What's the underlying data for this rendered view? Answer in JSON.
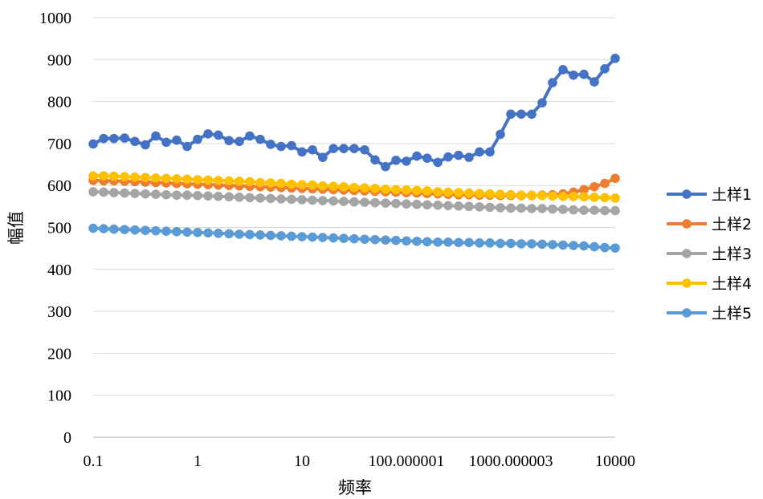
{
  "chart_data": {
    "type": "line",
    "title": "",
    "xlabel": "频率",
    "ylabel": "幅值",
    "x_scale": "log",
    "xlim": [
      0.1,
      10000
    ],
    "ylim": [
      0,
      1000
    ],
    "yticks": [
      "0",
      "100",
      "200",
      "300",
      "400",
      "500",
      "600",
      "700",
      "800",
      "900",
      "1000"
    ],
    "xticks": [
      {
        "value": 0.1,
        "label": "0.1"
      },
      {
        "value": 1,
        "label": "1"
      },
      {
        "value": 10,
        "label": "10"
      },
      {
        "value": 100,
        "label": "100.000001"
      },
      {
        "value": 1000,
        "label": "1000.000003"
      },
      {
        "value": 10000,
        "label": "10000"
      }
    ],
    "grid": "horizontal",
    "legend_position": "right",
    "x": [
      0.1,
      0.126,
      0.158,
      0.2,
      0.251,
      0.316,
      0.398,
      0.501,
      0.631,
      0.794,
      1,
      1.26,
      1.58,
      2,
      2.51,
      3.16,
      3.98,
      5.01,
      6.31,
      7.94,
      10,
      12.6,
      15.8,
      20,
      25.1,
      31.6,
      39.8,
      50.1,
      63.1,
      79.4,
      100,
      126,
      158,
      200,
      251,
      316,
      398,
      501,
      631,
      794,
      1000,
      1259,
      1585,
      1995,
      2512,
      3162,
      3981,
      5012,
      6310,
      7943,
      10000
    ],
    "series": [
      {
        "name": "土样1",
        "color": "#4472c4",
        "values": [
          699,
          712,
          712,
          713,
          705,
          697,
          718,
          703,
          708,
          693,
          710,
          723,
          720,
          707,
          705,
          718,
          710,
          698,
          693,
          695,
          680,
          685,
          667,
          688,
          688,
          688,
          685,
          661,
          645,
          660,
          658,
          670,
          665,
          655,
          668,
          672,
          667,
          680,
          680,
          722,
          770,
          770,
          770,
          797,
          845,
          876,
          863,
          865,
          847,
          878,
          903
        ]
      },
      {
        "name": "土样2",
        "color": "#ed7d31",
        "values": [
          612,
          611,
          611,
          610,
          609,
          608,
          607,
          606,
          605,
          604,
          603,
          602,
          601,
          600,
          599,
          598,
          597,
          596,
          595,
          594,
          593,
          592,
          591,
          590,
          589,
          588,
          587,
          586,
          585,
          584,
          583,
          582,
          581,
          580,
          579,
          578,
          578,
          577,
          577,
          576,
          576,
          576,
          576,
          577,
          578,
          580,
          584,
          590,
          597,
          605,
          617
        ]
      },
      {
        "name": "土样3",
        "color": "#a5a5a5",
        "values": [
          585,
          584,
          583,
          582,
          581,
          580,
          579,
          578,
          577,
          577,
          576,
          575,
          574,
          573,
          572,
          571,
          570,
          569,
          568,
          567,
          566,
          565,
          564,
          563,
          562,
          561,
          560,
          559,
          558,
          557,
          556,
          555,
          554,
          553,
          552,
          551,
          550,
          549,
          548,
          547,
          546,
          546,
          545,
          545,
          544,
          543,
          542,
          541,
          541,
          540,
          540
        ]
      },
      {
        "name": "土样4",
        "color": "#ffc000",
        "values": [
          623,
          623,
          622,
          621,
          620,
          619,
          618,
          617,
          616,
          615,
          614,
          613,
          612,
          611,
          610,
          609,
          607,
          606,
          605,
          603,
          602,
          601,
          599,
          598,
          597,
          595,
          594,
          593,
          591,
          590,
          589,
          588,
          587,
          585,
          584,
          583,
          582,
          581,
          580,
          579,
          578,
          577,
          577,
          576,
          575,
          574,
          574,
          573,
          572,
          571,
          570
        ]
      },
      {
        "name": "土样5",
        "color": "#5b9bd5",
        "values": [
          498,
          497,
          496,
          495,
          494,
          493,
          492,
          491,
          490,
          489,
          488,
          487,
          486,
          485,
          484,
          483,
          482,
          481,
          480,
          479,
          478,
          477,
          476,
          475,
          474,
          473,
          472,
          471,
          470,
          469,
          468,
          467,
          466,
          465,
          465,
          464,
          464,
          463,
          463,
          462,
          462,
          461,
          461,
          460,
          459,
          458,
          457,
          456,
          454,
          452,
          451
        ]
      }
    ]
  }
}
